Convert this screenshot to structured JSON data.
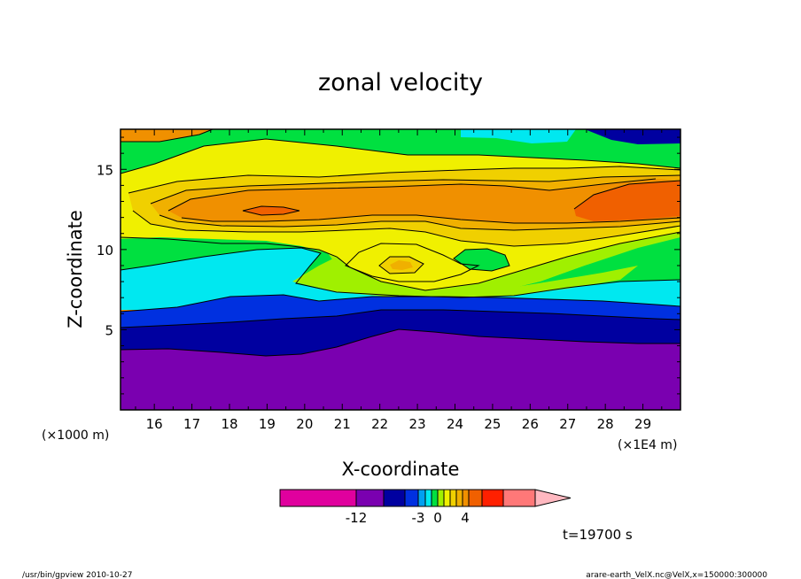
{
  "chart_data": {
    "type": "heatmap",
    "title": "zonal velocity",
    "xlabel": "X-coordinate",
    "ylabel": "Z-coordinate",
    "x_unit_left": "(×1000 m)",
    "x_unit_right": "(×1E4 m)",
    "x_range": [
      15.1,
      30.0
    ],
    "y_range": [
      0,
      17.5
    ],
    "x_ticks": [
      "16",
      "17",
      "18",
      "19",
      "20",
      "21",
      "22",
      "23",
      "24",
      "25",
      "26",
      "27",
      "28",
      "29"
    ],
    "y_ticks": [
      "5",
      "10",
      "15"
    ],
    "colorbar": {
      "colors": [
        "#e0009e",
        "#7a00b0",
        "#0000a0",
        "#0030e0",
        "#00a0f0",
        "#00e8f0",
        "#00e040",
        "#a0f000",
        "#f0f000",
        "#f0d000",
        "#f0b000",
        "#f09000",
        "#f06000",
        "#ff2000",
        "#ff7878",
        "#ffb8c0"
      ],
      "tick_labels": [
        "-12",
        "-3",
        "0",
        "4"
      ]
    },
    "annotation": "t=19700 s"
  },
  "footer": {
    "left": "/usr/bin/gpview  2010-10-27",
    "right": "arare-earth_VelX.nc@VelX,x=150000:300000"
  }
}
